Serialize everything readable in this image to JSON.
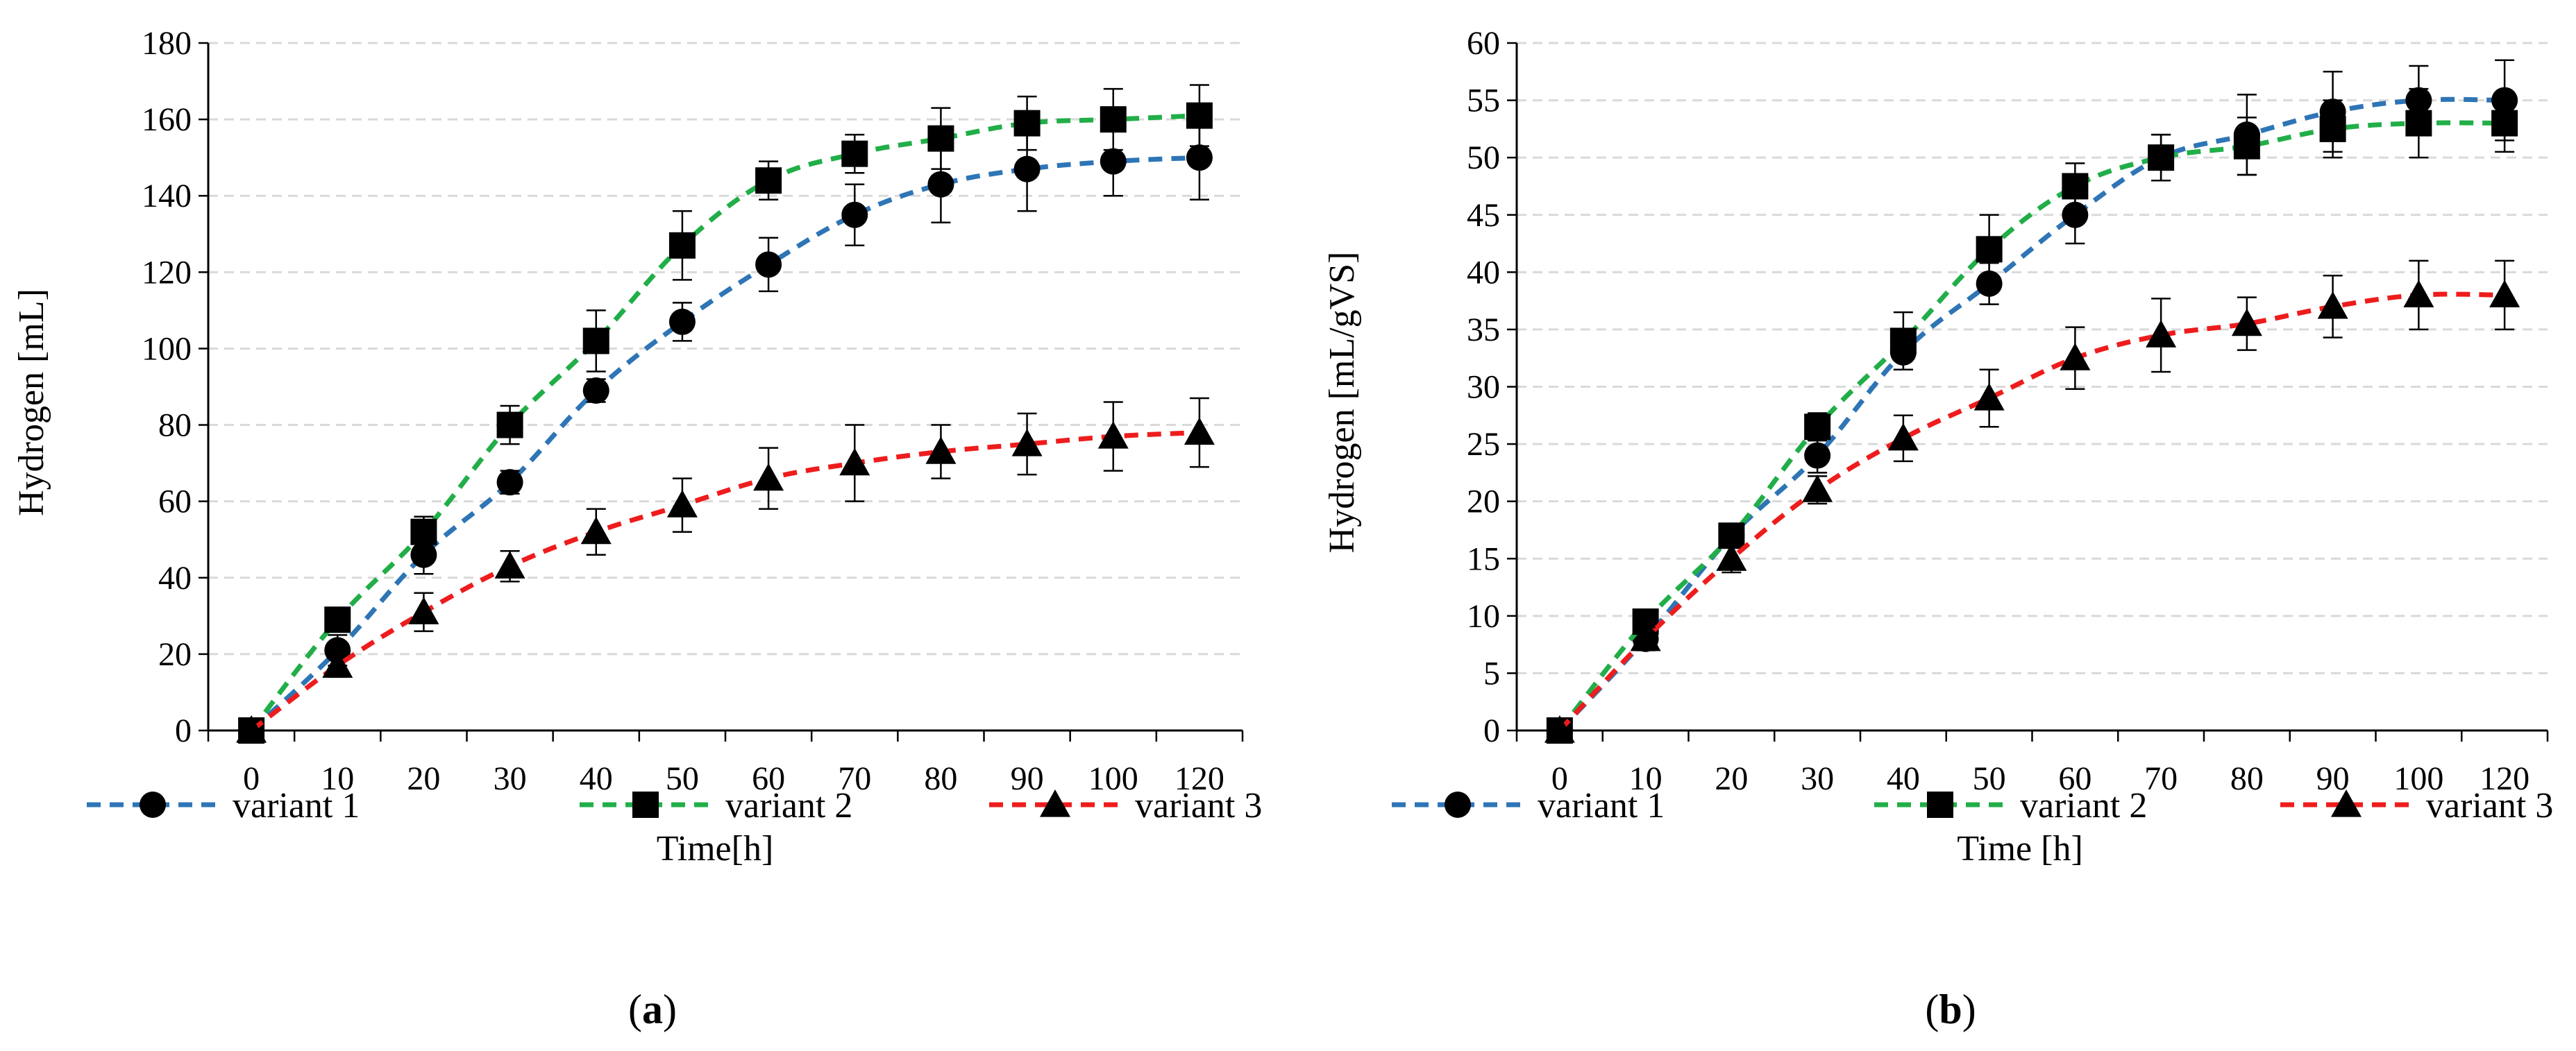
{
  "colors": {
    "variant1": "#2E75B6",
    "variant2": "#21AE48",
    "variant3": "#EE1C1C",
    "marker": "#000000",
    "grid": "#D9D9D9"
  },
  "chart_data": [
    {
      "type": "line",
      "panel_label": "a",
      "xlabel": "Time[h]",
      "ylabel": "Hydrogen [mL]",
      "ylim": [
        0,
        180
      ],
      "yticks": [
        0,
        20,
        40,
        60,
        80,
        100,
        120,
        140,
        160,
        180
      ],
      "xticks": [
        0,
        10,
        20,
        30,
        40,
        50,
        60,
        70,
        80,
        90,
        100,
        120
      ],
      "grid": true,
      "legend_position": "bottom",
      "series": [
        {
          "name": "variant 1",
          "color_key": "variant1",
          "marker": "circle",
          "line": "dashed",
          "x": [
            0,
            10,
            20,
            30,
            40,
            50,
            60,
            70,
            80,
            90,
            100,
            120
          ],
          "values": [
            0,
            21,
            46,
            65,
            89,
            107,
            122,
            135,
            143,
            147,
            149,
            150
          ],
          "errors": [
            0,
            4,
            5,
            3,
            3,
            5,
            7,
            8,
            10,
            11,
            9,
            11
          ]
        },
        {
          "name": "variant 2",
          "color_key": "variant2",
          "marker": "square",
          "line": "dashed",
          "x": [
            0,
            10,
            20,
            30,
            40,
            50,
            60,
            70,
            80,
            90,
            100,
            120
          ],
          "values": [
            0,
            29,
            52,
            80,
            102,
            127,
            144,
            151,
            155,
            159,
            160,
            161
          ],
          "errors": [
            0,
            3,
            4,
            5,
            8,
            9,
            5,
            5,
            8,
            7,
            8,
            8
          ]
        },
        {
          "name": "variant 3",
          "color_key": "variant3",
          "marker": "triangle",
          "line": "dashed",
          "x": [
            0,
            10,
            20,
            30,
            40,
            50,
            60,
            70,
            80,
            90,
            100,
            120
          ],
          "values": [
            0,
            17,
            31,
            43,
            52,
            59,
            66,
            70,
            73,
            75,
            77,
            78
          ],
          "errors": [
            0,
            3,
            5,
            4,
            6,
            7,
            8,
            10,
            7,
            8,
            9,
            9
          ]
        }
      ]
    },
    {
      "type": "line",
      "panel_label": "b",
      "xlabel": "Time [h]",
      "ylabel": "Hydrogen [mL/gVS]",
      "ylim": [
        0,
        60
      ],
      "yticks": [
        0,
        5,
        10,
        15,
        20,
        25,
        30,
        35,
        40,
        45,
        50,
        55,
        60
      ],
      "xticks": [
        0,
        10,
        20,
        30,
        40,
        50,
        60,
        70,
        80,
        90,
        100,
        120
      ],
      "grid": true,
      "legend_position": "bottom",
      "series": [
        {
          "name": "variant 1",
          "color_key": "variant1",
          "marker": "circle",
          "line": "dashed",
          "x": [
            0,
            10,
            20,
            30,
            40,
            50,
            60,
            70,
            80,
            90,
            100,
            120
          ],
          "values": [
            0,
            8,
            17,
            24,
            33,
            39,
            45,
            50,
            52,
            54,
            55,
            55
          ],
          "errors": [
            0,
            1,
            1,
            1.5,
            1.5,
            1.8,
            2.5,
            2,
            3.5,
            3.5,
            3,
            3.5
          ]
        },
        {
          "name": "variant 2",
          "color_key": "variant2",
          "marker": "square",
          "line": "dashed",
          "x": [
            0,
            10,
            20,
            30,
            40,
            50,
            60,
            70,
            80,
            90,
            100,
            120
          ],
          "values": [
            0,
            9.5,
            17,
            26.5,
            34,
            42,
            47.5,
            50,
            51,
            52.5,
            53,
            53
          ],
          "errors": [
            0,
            1,
            1,
            1.2,
            2.5,
            3,
            2,
            2,
            2.5,
            2.5,
            3,
            2.5
          ]
        },
        {
          "name": "variant 3",
          "color_key": "variant3",
          "marker": "triangle",
          "line": "dashed",
          "x": [
            0,
            10,
            20,
            30,
            40,
            50,
            60,
            70,
            80,
            90,
            100,
            120
          ],
          "values": [
            0,
            8,
            15,
            21,
            25.5,
            29,
            32.5,
            34.5,
            35.5,
            37,
            38,
            38
          ],
          "errors": [
            0,
            1,
            1.2,
            1.2,
            2,
            2.5,
            2.7,
            3.2,
            2.3,
            2.7,
            3,
            3
          ]
        }
      ]
    }
  ]
}
